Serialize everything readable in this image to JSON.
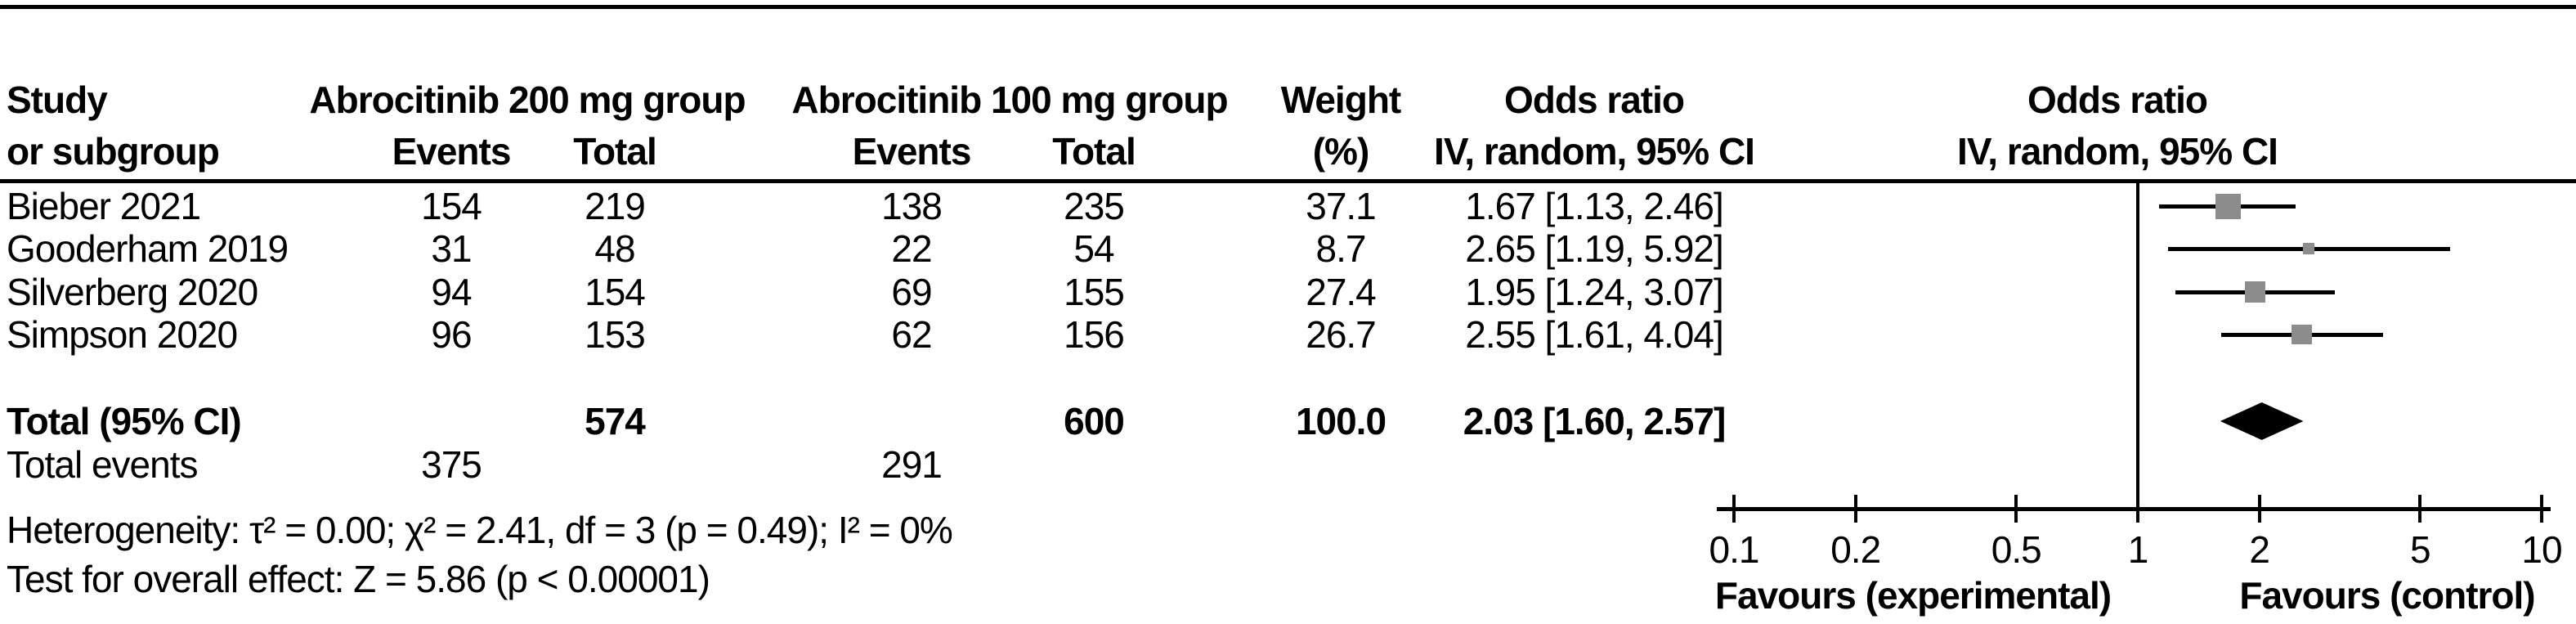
{
  "table": {
    "headers": {
      "study_line1": "Study",
      "study_line2": "or subgroup",
      "group1": "Abrocitinib 200 mg group",
      "group2": "Abrocitinib 100 mg group",
      "events": "Events",
      "total": "Total",
      "weight_line1": "Weight",
      "weight_line2": "(%)",
      "or_line1": "Odds ratio",
      "or_line2": "IV, random, 95% CI",
      "plot_or_line1": "Odds ratio",
      "plot_or_line2": "IV, random, 95% CI"
    },
    "rows": [
      {
        "study": "Bieber 2021",
        "events1": "154",
        "total1": "219",
        "events2": "138",
        "total2": "235",
        "weight": "37.1",
        "or_text": "1.67 [1.13, 2.46]"
      },
      {
        "study": "Gooderham 2019",
        "events1": "31",
        "total1": "48",
        "events2": "22",
        "total2": "54",
        "weight": "8.7",
        "or_text": "2.65 [1.19, 5.92]"
      },
      {
        "study": "Silverberg 2020",
        "events1": "94",
        "total1": "154",
        "events2": "69",
        "total2": "155",
        "weight": "27.4",
        "or_text": "1.95 [1.24, 3.07]"
      },
      {
        "study": "Simpson 2020",
        "events1": "96",
        "total1": "153",
        "events2": "62",
        "total2": "156",
        "weight": "26.7",
        "or_text": "2.55 [1.61, 4.04]"
      }
    ],
    "total_row": {
      "label": "Total (95% CI)",
      "total1": "574",
      "total2": "600",
      "weight": "100.0",
      "or_text": "2.03 [1.60, 2.57]"
    },
    "total_events_row": {
      "label": "Total events",
      "events1": "375",
      "events2": "291"
    },
    "heterogeneity": "Heterogeneity: τ² = 0.00; χ² = 2.41, df = 3 (p = 0.49); I² = 0%",
    "overall_effect": "Test for overall effect: Z = 5.86 (p < 0.00001)"
  },
  "chart_data": {
    "type": "forest",
    "x_scale": "log",
    "xlim": [
      0.1,
      10
    ],
    "axis_ticks": [
      0.1,
      0.2,
      0.5,
      1,
      2,
      5,
      10
    ],
    "null_line": 1,
    "studies": [
      {
        "name": "Bieber 2021",
        "or": 1.67,
        "ci_low": 1.13,
        "ci_high": 2.46,
        "weight": 37.1
      },
      {
        "name": "Gooderham 2019",
        "or": 2.65,
        "ci_low": 1.19,
        "ci_high": 5.92,
        "weight": 8.7
      },
      {
        "name": "Silverberg 2020",
        "or": 1.95,
        "ci_low": 1.24,
        "ci_high": 3.07,
        "weight": 27.4
      },
      {
        "name": "Simpson 2020",
        "or": 2.55,
        "ci_low": 1.61,
        "ci_high": 4.04,
        "weight": 26.7
      }
    ],
    "total": {
      "or": 2.03,
      "ci_low": 1.6,
      "ci_high": 2.57,
      "weight": 100.0
    },
    "favours_left": "Favours (experimental)",
    "favours_right": "Favours (control)",
    "marker_color": "#8c8c8c",
    "line_color": "#000000"
  }
}
